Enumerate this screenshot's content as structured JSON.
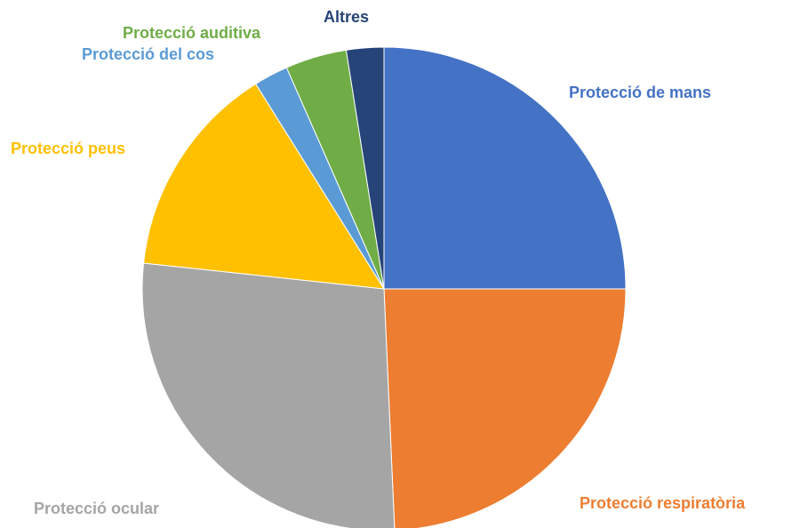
{
  "chart_data": {
    "type": "pie",
    "categories": [
      "Protecció de mans",
      "Protecció respiratòria",
      "Protecció ocular",
      "Protecció peus",
      "Protecció del cos",
      "Protecció auditiva",
      "Altres"
    ],
    "values": [
      25,
      24.3,
      27.4,
      14.4,
      2.3,
      4.1,
      2.5
    ],
    "colors": [
      "#4472c4",
      "#ed7d31",
      "#a5a5a5",
      "#ffc000",
      "#5b9bd5",
      "#70ad47",
      "#264478"
    ]
  }
}
